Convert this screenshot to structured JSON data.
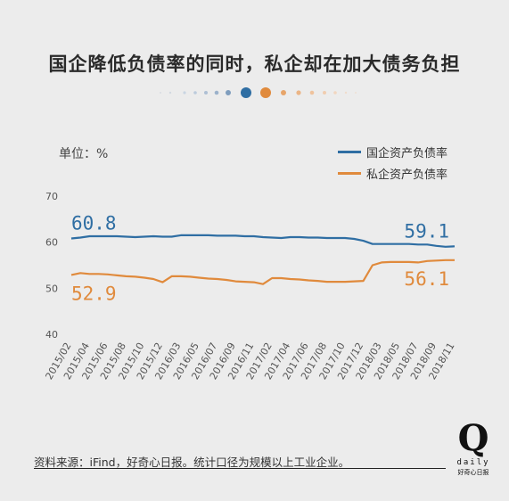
{
  "title": "国企降低负债率的同时，私企却在加大债务负担",
  "unit_label": "单位：%",
  "source_note": "资料来源：iFind，好奇心日报。统计口径为规模以上工业企业。",
  "logo": {
    "mark": "Q",
    "word": "daily",
    "subtitle": "好奇心日报"
  },
  "colors": {
    "soe": "#2f6ea3",
    "private": "#e08a3c",
    "background": "#ececec"
  },
  "chart_data": {
    "type": "line",
    "ylim": [
      40,
      70
    ],
    "yticks": [
      40,
      50,
      60,
      70
    ],
    "grid": false,
    "legend_position": "top-right",
    "categories": [
      "2015/02",
      "2015/03",
      "2015/04",
      "2015/05",
      "2015/06",
      "2015/07",
      "2015/08",
      "2015/09",
      "2015/10",
      "2015/11",
      "2015/12",
      "2016/02",
      "2016/03",
      "2016/04",
      "2016/05",
      "2016/06",
      "2016/07",
      "2016/08",
      "2016/09",
      "2016/10",
      "2016/11",
      "2016/12",
      "2017/02",
      "2017/03",
      "2017/04",
      "2017/05",
      "2017/06",
      "2017/07",
      "2017/08",
      "2017/09",
      "2017/10",
      "2017/11",
      "2017/12",
      "2018/02",
      "2018/03",
      "2018/04",
      "2018/05",
      "2018/06",
      "2018/07",
      "2018/08",
      "2018/09",
      "2018/10",
      "2018/11"
    ],
    "xtick_labels": [
      "2015/02",
      "2015/04",
      "2015/06",
      "2015/08",
      "2015/10",
      "2015/12",
      "2016/03",
      "2016/05",
      "2016/07",
      "2016/09",
      "2016/11",
      "2017/02",
      "2017/04",
      "2017/06",
      "2017/08",
      "2017/10",
      "2017/12",
      "2018/03",
      "2018/05",
      "2018/07",
      "2018/09",
      "2018/11"
    ],
    "series": [
      {
        "name": "国企资产负债率",
        "color": "#2f6ea3",
        "values": [
          60.8,
          61.0,
          61.3,
          61.3,
          61.3,
          61.3,
          61.2,
          61.1,
          61.2,
          61.3,
          61.2,
          61.2,
          61.5,
          61.5,
          61.5,
          61.5,
          61.4,
          61.4,
          61.4,
          61.3,
          61.3,
          61.1,
          61.0,
          60.9,
          61.1,
          61.1,
          61.0,
          61.0,
          60.9,
          60.9,
          60.9,
          60.7,
          60.3,
          59.6,
          59.6,
          59.6,
          59.6,
          59.6,
          59.5,
          59.5,
          59.2,
          59.0,
          59.1
        ]
      },
      {
        "name": "私企资产负债率",
        "color": "#e08a3c",
        "values": [
          52.9,
          53.3,
          53.1,
          53.1,
          53.0,
          52.8,
          52.6,
          52.5,
          52.3,
          52.0,
          51.3,
          52.6,
          52.6,
          52.5,
          52.3,
          52.1,
          52.0,
          51.8,
          51.5,
          51.4,
          51.3,
          50.9,
          52.2,
          52.2,
          52.0,
          51.9,
          51.7,
          51.6,
          51.4,
          51.4,
          51.4,
          51.5,
          51.6,
          55.0,
          55.6,
          55.7,
          55.7,
          55.7,
          55.6,
          55.9,
          56.0,
          56.1,
          56.1
        ]
      }
    ],
    "annotations": [
      {
        "text": "60.8",
        "series": 0,
        "point": "first"
      },
      {
        "text": "59.1",
        "series": 0,
        "point": "last"
      },
      {
        "text": "52.9",
        "series": 1,
        "point": "first"
      },
      {
        "text": "56.1",
        "series": 1,
        "point": "last"
      }
    ]
  }
}
